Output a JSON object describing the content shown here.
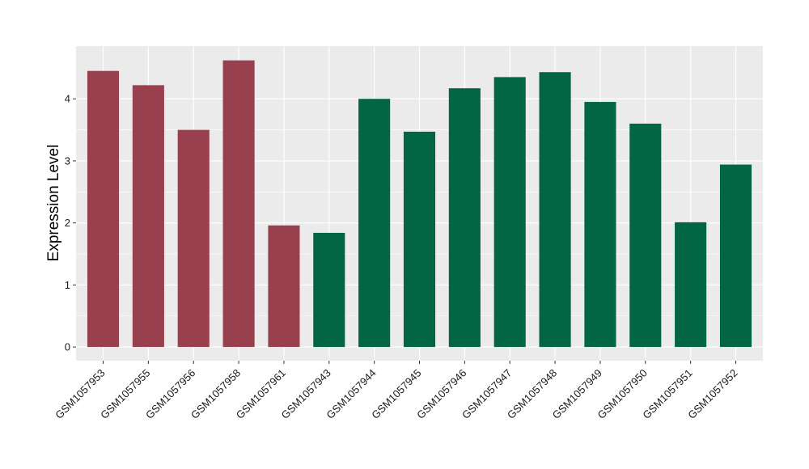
{
  "chart_data": {
    "type": "bar",
    "categories": [
      "GSM1057953",
      "GSM1057955",
      "GSM1057956",
      "GSM1057958",
      "GSM1057961",
      "GSM1057943",
      "GSM1057944",
      "GSM1057945",
      "GSM1057946",
      "GSM1057947",
      "GSM1057948",
      "GSM1057949",
      "GSM1057950",
      "GSM1057951",
      "GSM1057952"
    ],
    "values": [
      4.45,
      4.22,
      3.5,
      4.62,
      1.96,
      1.84,
      4.0,
      3.47,
      4.17,
      4.35,
      4.43,
      3.95,
      3.6,
      2.01,
      2.94
    ],
    "group": [
      "a",
      "a",
      "a",
      "a",
      "a",
      "b",
      "b",
      "b",
      "b",
      "b",
      "b",
      "b",
      "b",
      "b",
      "b"
    ],
    "group_colors": {
      "a": "#99404f",
      "b": "#026644"
    },
    "title": "",
    "xlabel": "",
    "ylabel": "Expression Level",
    "yticks": [
      0,
      1,
      2,
      3,
      4
    ],
    "ylim": [
      -0.22,
      4.85
    ],
    "grid": true,
    "legend": "none",
    "panel_background": "#ebebeb",
    "grid_color": "#ffffff"
  }
}
